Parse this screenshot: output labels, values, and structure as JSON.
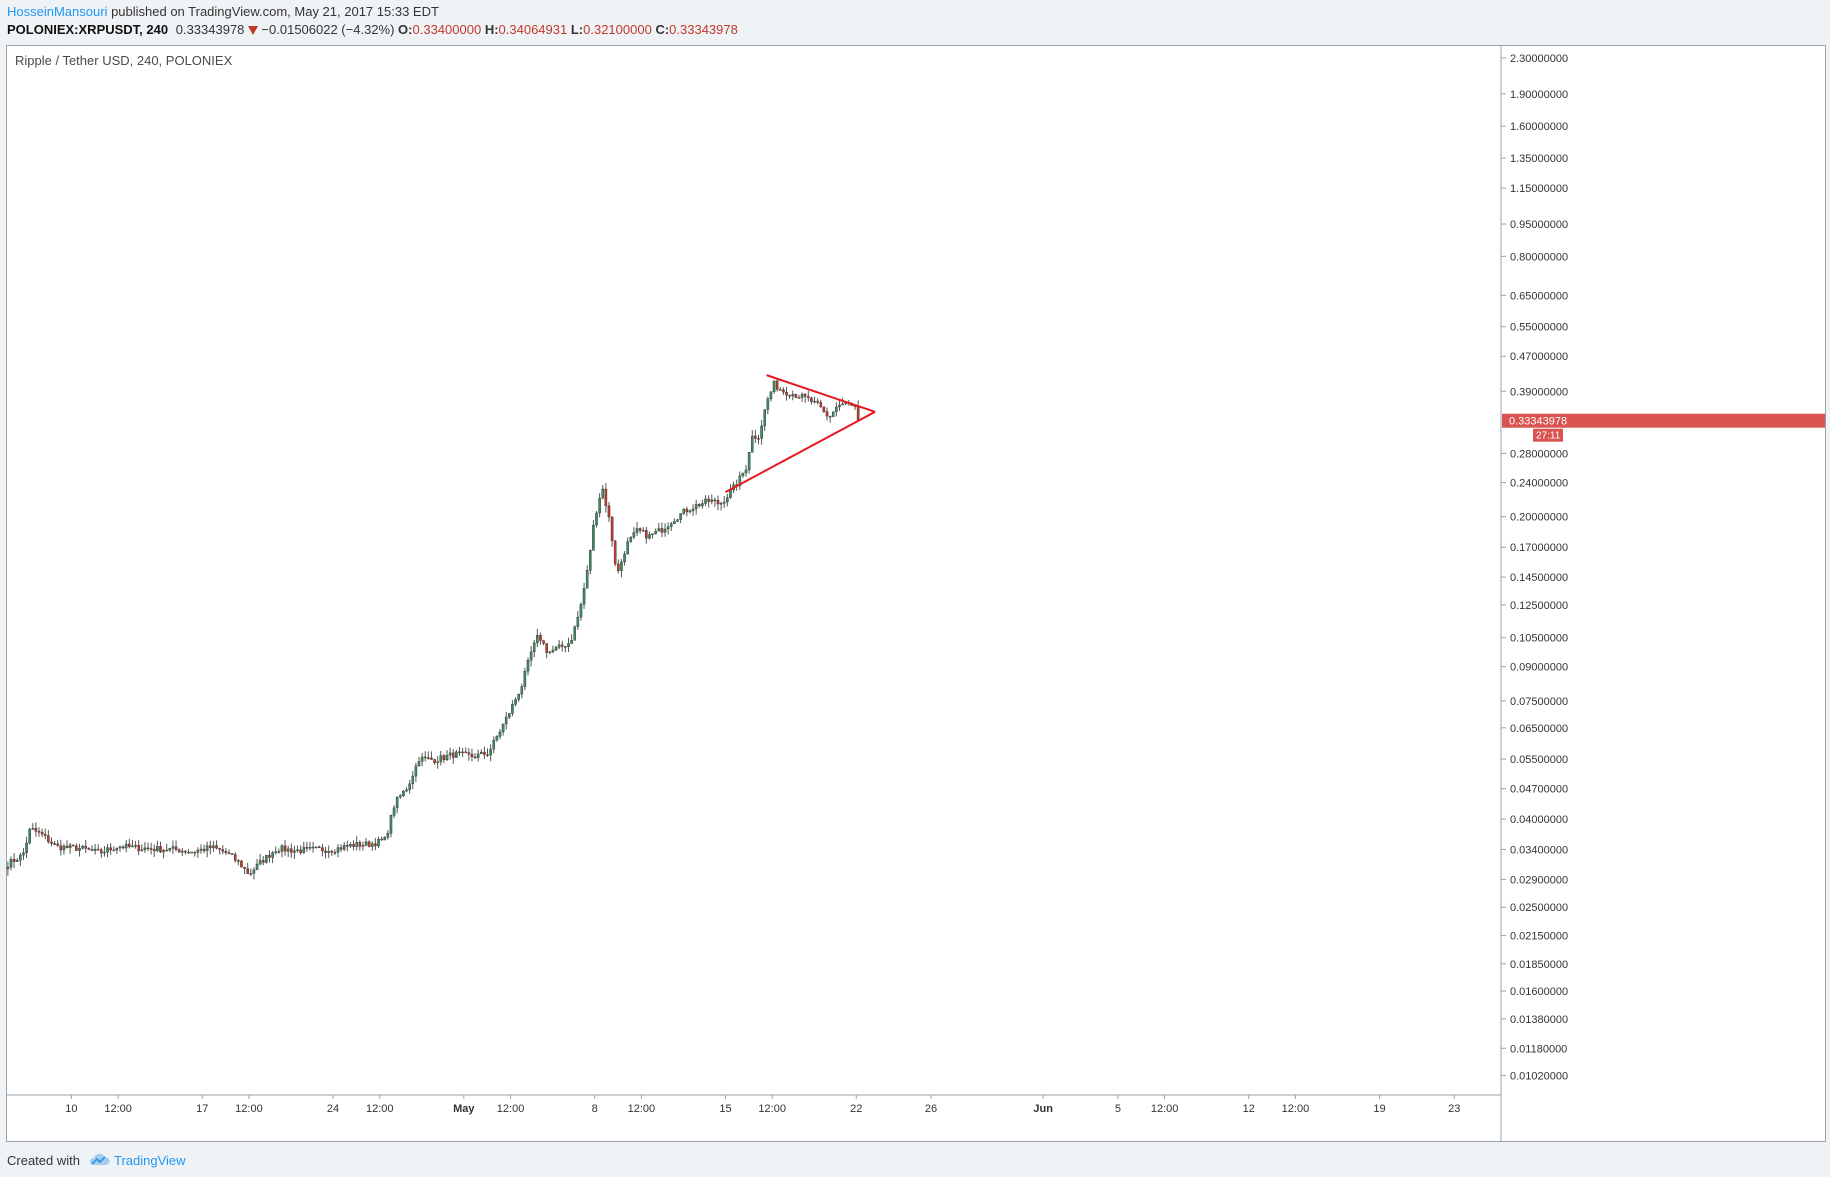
{
  "header": {
    "author": "HosseinMansouri",
    "published": "published on TradingView.com, May 21, 2017 15:33 EDT",
    "symbol": "POLONIEX:XRPUSDT, 240",
    "last": "0.33343978",
    "change": "−0.01506022 (−4.32%)",
    "o_label": "O:",
    "o_value": "0.33400000",
    "h_label": "H:",
    "h_value": "0.34064931",
    "l_label": "L:",
    "l_value": "0.32100000",
    "c_label": "C:",
    "c_value": "0.33343978"
  },
  "chart_title": "Ripple / Tether USD, 240, POLONIEX",
  "footer": {
    "created_with": "Created with",
    "brand": "TradingView"
  },
  "colors": {
    "up": "#3d8b5e",
    "down": "#c0392b",
    "trendline": "#e8171c",
    "price_tag": "#d9534f",
    "link": "#2196f3"
  },
  "chart_data": {
    "type": "candlestick",
    "symbol": "XRPUSDT",
    "exchange": "POLONIEX",
    "interval": "240",
    "y_scale": "log",
    "y_ticks": [
      "2.30000000",
      "1.90000000",
      "1.60000000",
      "1.35000000",
      "1.15000000",
      "0.95000000",
      "0.80000000",
      "0.65000000",
      "0.55000000",
      "0.47000000",
      "0.39000000",
      "0.28000000",
      "0.24000000",
      "0.20000000",
      "0.17000000",
      "0.14500000",
      "0.12500000",
      "0.10500000",
      "0.09000000",
      "0.07500000",
      "0.06500000",
      "0.05500000",
      "0.04700000",
      "0.04000000",
      "0.03400000",
      "0.02900000",
      "0.02500000",
      "0.02150000",
      "0.01850000",
      "0.01600000",
      "0.01380000",
      "0.01180000",
      "0.01020000"
    ],
    "x_ticks": [
      {
        "label": "10",
        "day": 10
      },
      {
        "label": "12:00",
        "day": 12.5
      },
      {
        "label": "17",
        "day": 17
      },
      {
        "label": "12:00",
        "day": 19.5
      },
      {
        "label": "24",
        "day": 24
      },
      {
        "label": "12:00",
        "day": 26.5
      },
      {
        "label": "May",
        "day": 31
      },
      {
        "label": "12:00",
        "day": 33.5
      },
      {
        "label": "8",
        "day": 38
      },
      {
        "label": "12:00",
        "day": 40.5
      },
      {
        "label": "15",
        "day": 45
      },
      {
        "label": "12:00",
        "day": 47.5
      },
      {
        "label": "22",
        "day": 52
      },
      {
        "label": "26",
        "day": 56
      },
      {
        "label": "Jun",
        "day": 62
      },
      {
        "label": "5",
        "day": 66
      },
      {
        "label": "12:00",
        "day": 68.5
      },
      {
        "label": "12",
        "day": 73
      },
      {
        "label": "12:00",
        "day": 75.5
      },
      {
        "label": "19",
        "day": 80
      },
      {
        "label": "23",
        "day": 84
      }
    ],
    "x_range": [
      6.5,
      86.5
    ],
    "y_range": [
      0.0092,
      2.4
    ],
    "last_price": "0.33343978",
    "countdown": "27:11",
    "close_path": [
      [
        6.6,
        0.0315
      ],
      [
        7.4,
        0.033
      ],
      [
        7.8,
        0.038
      ],
      [
        8.4,
        0.0368
      ],
      [
        9.2,
        0.0345
      ],
      [
        10.5,
        0.0342
      ],
      [
        11.5,
        0.0334
      ],
      [
        12.5,
        0.0346
      ],
      [
        13.5,
        0.0343
      ],
      [
        14.5,
        0.0341
      ],
      [
        15.5,
        0.034
      ],
      [
        16.5,
        0.0336
      ],
      [
        17.5,
        0.0344
      ],
      [
        18.3,
        0.0334
      ],
      [
        19.0,
        0.0316
      ],
      [
        19.5,
        0.0298
      ],
      [
        20.2,
        0.032
      ],
      [
        21.0,
        0.0342
      ],
      [
        22.0,
        0.0338
      ],
      [
        23.0,
        0.034
      ],
      [
        24.0,
        0.034
      ],
      [
        25.0,
        0.0348
      ],
      [
        26.0,
        0.035
      ],
      [
        26.8,
        0.0358
      ],
      [
        27.3,
        0.0435
      ],
      [
        28.0,
        0.0475
      ],
      [
        28.6,
        0.0552
      ],
      [
        29.5,
        0.0548
      ],
      [
        30.5,
        0.0565
      ],
      [
        31.5,
        0.0558
      ],
      [
        32.3,
        0.0568
      ],
      [
        32.9,
        0.0635
      ],
      [
        33.5,
        0.0715
      ],
      [
        34.1,
        0.0815
      ],
      [
        34.6,
        0.097
      ],
      [
        35.0,
        0.1065
      ],
      [
        35.5,
        0.097
      ],
      [
        36.1,
        0.0995
      ],
      [
        36.7,
        0.1025
      ],
      [
        37.2,
        0.121
      ],
      [
        37.6,
        0.149
      ],
      [
        38.0,
        0.199
      ],
      [
        38.4,
        0.235
      ],
      [
        38.8,
        0.195
      ],
      [
        39.2,
        0.146
      ],
      [
        39.7,
        0.172
      ],
      [
        40.3,
        0.186
      ],
      [
        40.9,
        0.18
      ],
      [
        41.6,
        0.187
      ],
      [
        42.2,
        0.197
      ],
      [
        42.9,
        0.207
      ],
      [
        43.5,
        0.213
      ],
      [
        44.2,
        0.218
      ],
      [
        44.7,
        0.214
      ],
      [
        45.2,
        0.226
      ],
      [
        45.7,
        0.242
      ],
      [
        46.1,
        0.26
      ],
      [
        46.4,
        0.306
      ],
      [
        46.8,
        0.308
      ],
      [
        47.2,
        0.368
      ],
      [
        47.6,
        0.405
      ],
      [
        48.0,
        0.392
      ],
      [
        48.5,
        0.386
      ],
      [
        49.0,
        0.38
      ],
      [
        49.5,
        0.372
      ],
      [
        50.0,
        0.36
      ],
      [
        50.5,
        0.338
      ],
      [
        51.0,
        0.362
      ],
      [
        51.5,
        0.365
      ],
      [
        52.0,
        0.355
      ],
      [
        52.2,
        0.3334
      ]
    ],
    "trendlines": [
      {
        "from": {
          "day": 47.2,
          "price": 0.425
        },
        "to": {
          "day": 53.0,
          "price": 0.3495
        }
      },
      {
        "from": {
          "day": 45.0,
          "price": 0.228
        },
        "to": {
          "day": 53.0,
          "price": 0.3495
        }
      }
    ]
  }
}
